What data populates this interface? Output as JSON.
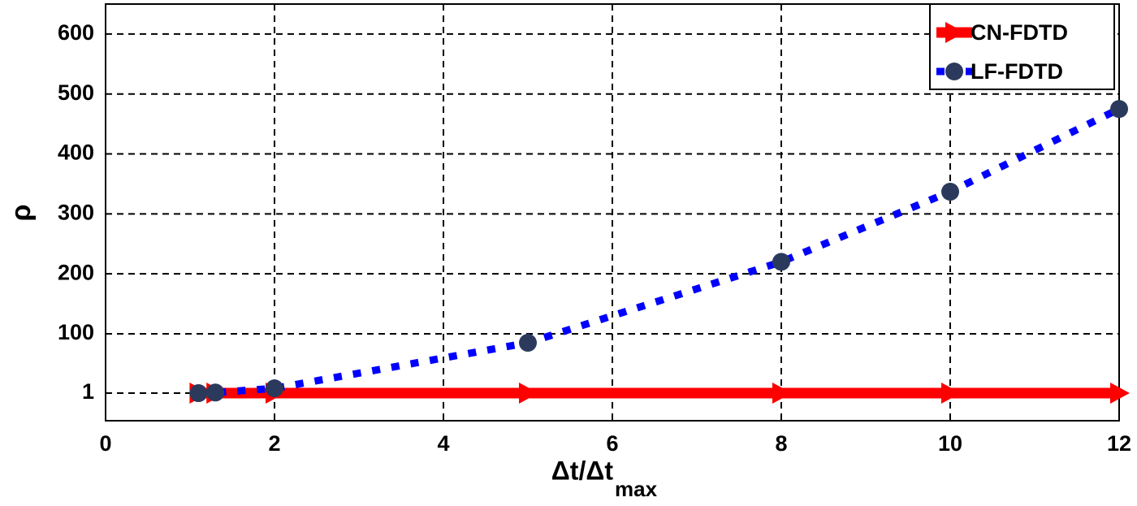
{
  "chart_data": {
    "type": "line",
    "xlabel": "Δt/Δt",
    "xlabel_sub": "max",
    "ylabel": "ρ",
    "x": [
      1.1,
      1.3,
      2,
      5,
      8,
      10,
      12
    ],
    "series": [
      {
        "name": "CN-FDTD",
        "color": "#ff0000",
        "marker_color": "#ff0000",
        "marker": "triangle",
        "style": "solid",
        "values": [
          1,
          1,
          1,
          1,
          1,
          1,
          1
        ]
      },
      {
        "name": "LF-FDTD",
        "color": "#0000ff",
        "marker_color": "#2b3a5c",
        "marker": "circle",
        "style": "dotted",
        "values": [
          1,
          2,
          9,
          85,
          220,
          337,
          475
        ]
      }
    ],
    "xlim": [
      0,
      12
    ],
    "xticks": [
      0,
      2,
      4,
      6,
      8,
      10,
      12
    ],
    "ylim": [
      -45,
      650
    ],
    "yticks": [
      1,
      100,
      200,
      300,
      400,
      500,
      600
    ],
    "grid": true,
    "legend": "top-right"
  }
}
